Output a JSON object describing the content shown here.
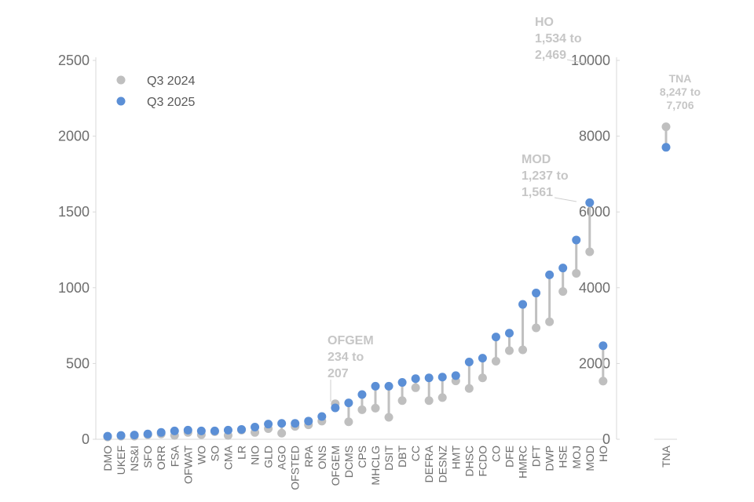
{
  "chart_data": {
    "type": "dumbbell",
    "legend": {
      "position": "top-left",
      "entries": [
        {
          "label": "Q3 2024",
          "color": "#bfbfbf"
        },
        {
          "label": "Q3 2025",
          "color": "#5b8fd6"
        }
      ]
    },
    "colors": {
      "q3_2024": "#bfbfbf",
      "q3_2025": "#5b8fd6",
      "connector": "#c0c0c0",
      "axis": "#d9d9d9",
      "annotation": "#c6c6c6"
    },
    "main_panel": {
      "ylim": [
        0,
        2500
      ],
      "yticks": [
        "0",
        "500",
        "1000",
        "1500",
        "2000",
        "2500"
      ],
      "y2lim": [
        0,
        10000
      ],
      "y2ticks": [
        "0",
        "2000",
        "4000",
        "6000",
        "8000",
        "10000"
      ],
      "categories": [
        "DMO",
        "UKEF",
        "NS&I",
        "SFO",
        "ORR",
        "FSA",
        "OFWAT",
        "WO",
        "SO",
        "CMA",
        "LR",
        "NIO",
        "GLD",
        "AGO",
        "OFSTED",
        "RPA",
        "ONS",
        "OFGEM",
        "DCMS",
        "CPS",
        "MHCLG",
        "DSIT",
        "DBT",
        "CC",
        "DEFRA",
        "DESNZ",
        "HMT",
        "DHSC",
        "FCDO",
        "CO",
        "DFE",
        "HMRC",
        "DFT",
        "DWP",
        "HSE",
        "MOJ",
        "MOD",
        "HO"
      ],
      "series": [
        {
          "name": "Q3 2024",
          "values": [
            15,
            20,
            20,
            30,
            35,
            25,
            45,
            30,
            50,
            25,
            60,
            45,
            70,
            40,
            85,
            95,
            120,
            234,
            115,
            195,
            205,
            145,
            255,
            340,
            255,
            275,
            385,
            335,
            405,
            515,
            585,
            590,
            735,
            775,
            975,
            1095,
            1237,
            1534
          ]
        },
        {
          "name": "Q3 2025",
          "values": [
            20,
            25,
            28,
            35,
            45,
            55,
            60,
            55,
            55,
            60,
            65,
            80,
            100,
            105,
            105,
            120,
            150,
            207,
            240,
            295,
            350,
            350,
            375,
            400,
            405,
            410,
            420,
            510,
            535,
            675,
            700,
            890,
            965,
            1085,
            1130,
            1315,
            1561,
            2469
          ]
        }
      ],
      "secondary_axis_categories": [
        "HO"
      ]
    },
    "side_panel": {
      "ylim": [
        0,
        10000
      ],
      "categories": [
        "TNA"
      ],
      "series": [
        {
          "name": "Q3 2024",
          "values": [
            8247
          ]
        },
        {
          "name": "Q3 2025",
          "values": [
            7706
          ]
        }
      ]
    },
    "annotations": [
      {
        "target": "OFGEM",
        "lines": [
          "OFGEM",
          "234 to",
          "207"
        ]
      },
      {
        "target": "MOD",
        "lines": [
          "MOD",
          "1,237 to",
          "1,561"
        ]
      },
      {
        "target": "HO",
        "lines": [
          "HO",
          "1,534 to",
          "2,469"
        ]
      },
      {
        "target": "TNA",
        "lines": [
          "TNA",
          "8,247 to",
          "7,706"
        ]
      }
    ]
  }
}
